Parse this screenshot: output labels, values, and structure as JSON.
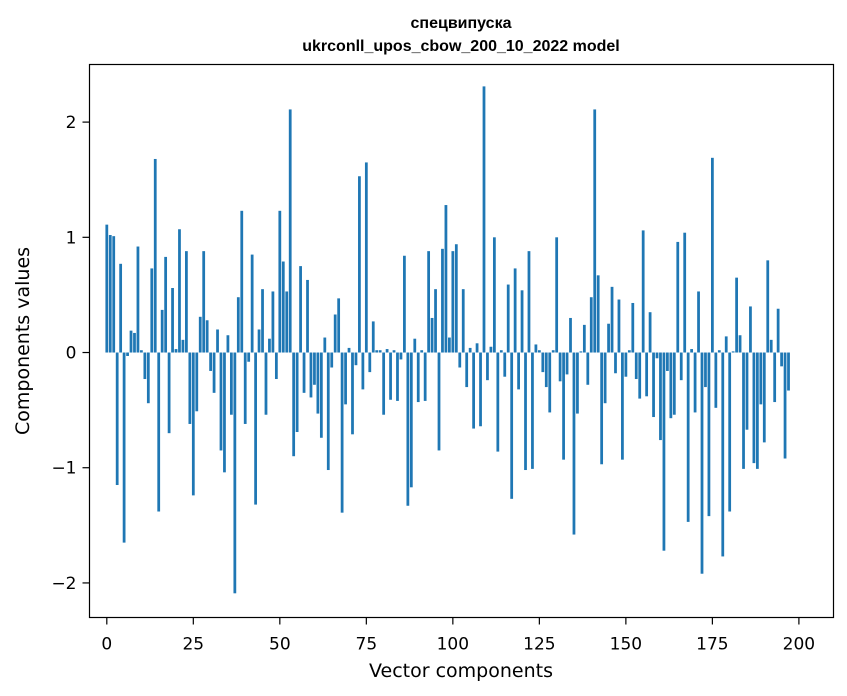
{
  "chart_data": {
    "type": "bar",
    "title": "спецвипуска",
    "subtitle": "ukrconll_upos_cbow_200_10_2022 model",
    "xlabel": "Vector components",
    "ylabel": "Components values",
    "xlim": [
      -5,
      210
    ],
    "ylim": [
      -2.3,
      2.5
    ],
    "x_ticks": [
      0,
      25,
      50,
      75,
      100,
      125,
      150,
      175,
      200
    ],
    "y_ticks": [
      -2,
      -1,
      0,
      1,
      2
    ],
    "y_tick_labels": [
      "−2",
      "−1",
      "0",
      "1",
      "2"
    ],
    "bar_color": "#1f77b4",
    "grid": false,
    "values": [
      1.11,
      1.02,
      1.01,
      -1.15,
      0.77,
      -1.65,
      -0.03,
      0.19,
      0.17,
      0.92,
      0.02,
      -0.23,
      -0.44,
      0.73,
      1.68,
      -1.38,
      0.37,
      0.83,
      -0.7,
      0.56,
      0.03,
      1.07,
      0.11,
      0.88,
      -0.62,
      -1.24,
      -0.51,
      0.31,
      0.88,
      0.28,
      -0.16,
      -0.35,
      0.2,
      -0.85,
      -1.04,
      0.15,
      -0.54,
      -2.09,
      0.48,
      1.23,
      -0.62,
      -0.08,
      0.85,
      -1.32,
      0.2,
      0.55,
      -0.54,
      0.12,
      0.53,
      -0.23,
      1.23,
      0.79,
      0.53,
      2.11,
      -0.9,
      -0.69,
      0.75,
      -0.35,
      0.63,
      -0.39,
      -0.28,
      -0.53,
      -0.74,
      0.13,
      -1.02,
      -0.13,
      0.33,
      0.47,
      -1.39,
      -0.45,
      0.04,
      -0.71,
      -0.11,
      1.53,
      -0.32,
      1.65,
      -0.17,
      0.27,
      0.02,
      0.02,
      -0.54,
      0.03,
      -0.41,
      0.02,
      -0.42,
      -0.06,
      0.84,
      -1.33,
      -1.17,
      0.12,
      -0.43,
      0.02,
      -0.42,
      0.88,
      0.3,
      0.55,
      -0.85,
      0.9,
      1.28,
      0.13,
      0.88,
      0.94,
      -0.13,
      0.55,
      -0.3,
      0.04,
      -0.66,
      0.08,
      -0.64,
      2.31,
      -0.24,
      0.05,
      1.0,
      -0.86,
      0.02,
      -0.21,
      0.59,
      -1.27,
      0.73,
      -0.32,
      0.54,
      -1.02,
      0.88,
      -1.01,
      0.07,
      0.02,
      -0.17,
      -0.3,
      -0.52,
      0.02,
      1.0,
      -0.25,
      -0.93,
      -0.19,
      0.3,
      -1.58,
      -0.53,
      0.01,
      0.24,
      -0.28,
      0.48,
      2.11,
      0.67,
      -0.97,
      -0.44,
      0.25,
      0.57,
      -0.18,
      0.46,
      -0.93,
      -0.21,
      0.02,
      0.43,
      -0.23,
      -0.4,
      1.06,
      -0.38,
      0.35,
      -0.56,
      -0.05,
      -0.76,
      -1.72,
      -0.16,
      -0.57,
      -0.54,
      0.96,
      -0.24,
      1.04,
      -1.47,
      0.03,
      -0.52,
      0.53,
      -1.92,
      -0.3,
      -1.42,
      1.69,
      -0.48,
      0.02,
      -1.77,
      0.14,
      -1.38,
      0.01,
      0.65,
      0.15,
      -1.01,
      -0.67,
      0.4,
      -0.96,
      -1.01,
      -0.45,
      -0.78,
      0.8,
      0.11,
      -0.43,
      0.38,
      -0.12,
      -0.92,
      -0.33
    ]
  }
}
